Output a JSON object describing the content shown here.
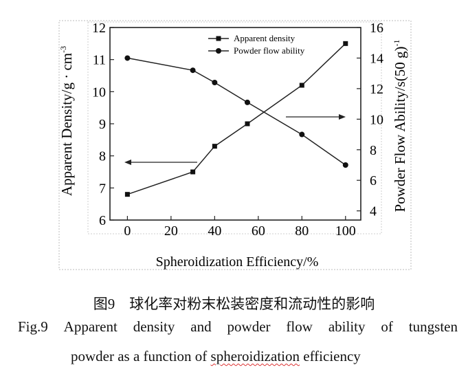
{
  "chart_data": {
    "type": "line",
    "x": [
      0,
      30,
      40,
      55,
      80,
      100
    ],
    "series": [
      {
        "name": "Apparent density",
        "axis": "left",
        "marker": "square",
        "values": [
          6.8,
          7.5,
          8.3,
          9.0,
          10.2,
          11.5
        ]
      },
      {
        "name": "Powder flow ability",
        "axis": "right",
        "marker": "circle",
        "values": [
          14.0,
          13.2,
          12.4,
          11.1,
          9.0,
          7.0
        ]
      }
    ],
    "xlabel": "Spheroidization Efficiency/%",
    "ylabel_left_main": "Apparent Density/g · cm",
    "ylabel_left_sup": "-3",
    "ylabel_right_main": "Powder Flow Ability/s(50 g)",
    "ylabel_right_sup": "-1",
    "xticks": [
      0,
      20,
      40,
      60,
      80,
      100
    ],
    "yticks_left": [
      6,
      7,
      8,
      9,
      10,
      11,
      12
    ],
    "yticks_right": [
      4,
      6,
      8,
      10,
      12,
      14,
      16
    ],
    "xlim": [
      -8,
      107
    ],
    "ylim_left": [
      6,
      12
    ],
    "ylim_right": [
      3.4,
      16
    ],
    "legend_position": "top-center",
    "grid": false,
    "line_color": "#222222"
  },
  "caption": {
    "zh": "图9　球化率对粉末松装密度和流动性的影响",
    "en_line1_words": [
      "Fig.9",
      "Apparent",
      "density",
      "and",
      "powder",
      "flow",
      "ability",
      "of",
      "tungsten"
    ],
    "en_line2_pre": "powder as a function of ",
    "en_line2_word": "spheroidization",
    "en_line2_post": " efficiency"
  }
}
